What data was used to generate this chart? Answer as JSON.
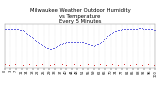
{
  "title": "Milwaukee Weather Outdoor Humidity\nvs Temperature\nEvery 5 Minutes",
  "title_fontsize": 3.8,
  "title_color": "#000000",
  "bg_color": "#ffffff",
  "plot_bg_color": "#ffffff",
  "grid_color": "#bbbbbb",
  "blue_color": "#0000cc",
  "red_color": "#cc0000",
  "humidity_x": [
    0,
    1,
    2,
    3,
    4,
    5,
    6,
    7,
    8,
    9,
    10,
    11,
    12,
    13,
    14,
    15,
    16,
    17,
    18,
    19,
    20,
    21,
    22,
    23,
    24,
    25,
    26,
    27,
    28,
    29,
    30,
    31,
    32,
    33,
    34,
    35,
    36,
    37,
    38,
    39,
    40,
    41,
    42,
    43,
    44,
    45,
    46,
    47,
    48,
    49,
    50,
    51,
    52,
    53,
    54,
    55,
    56,
    57,
    58,
    59,
    60,
    61,
    62,
    63,
    64,
    65,
    66,
    67,
    68,
    69,
    70,
    71,
    72,
    73,
    74,
    75,
    76,
    77,
    78,
    79,
    80,
    81,
    82,
    83,
    84,
    85,
    86,
    87,
    88,
    89,
    90,
    91,
    92,
    93,
    94,
    95,
    96,
    97,
    98,
    99,
    100
  ],
  "humidity_y": [
    92,
    92,
    92,
    92,
    92,
    92,
    92,
    92,
    92,
    91,
    90,
    90,
    90,
    88,
    85,
    83,
    80,
    78,
    76,
    74,
    72,
    70,
    68,
    66,
    64,
    62,
    60,
    58,
    57,
    56,
    55,
    55,
    56,
    57,
    58,
    60,
    62,
    63,
    64,
    65,
    66,
    67,
    68,
    68,
    68,
    68,
    68,
    68,
    68,
    68,
    68,
    68,
    67,
    66,
    65,
    64,
    63,
    62,
    62,
    61,
    62,
    63,
    64,
    65,
    67,
    70,
    73,
    75,
    78,
    80,
    83,
    85,
    86,
    87,
    88,
    89,
    90,
    90,
    91,
    92,
    92,
    92,
    92,
    92,
    92,
    92,
    92,
    92,
    92,
    93,
    94,
    93,
    92,
    92,
    91,
    91,
    92,
    92,
    91,
    90,
    90
  ],
  "temp_x": [
    0,
    3,
    7,
    12,
    16,
    21,
    25,
    30,
    33,
    38,
    41,
    46,
    50,
    55,
    59,
    63,
    67,
    71,
    75,
    79,
    83,
    87,
    91,
    95,
    99
  ],
  "temp_y": [
    27,
    26,
    27,
    26,
    27,
    26,
    28,
    26,
    27,
    27,
    26,
    27,
    26,
    27,
    26,
    27,
    26,
    27,
    26,
    27,
    26,
    27,
    26,
    27,
    26
  ],
  "xlim": [
    0,
    100
  ],
  "ylim": [
    20,
    100
  ],
  "tick_fontsize": 2.5,
  "marker_size_blue": 1.0,
  "marker_size_red": 1.2,
  "n_xticks": 28
}
